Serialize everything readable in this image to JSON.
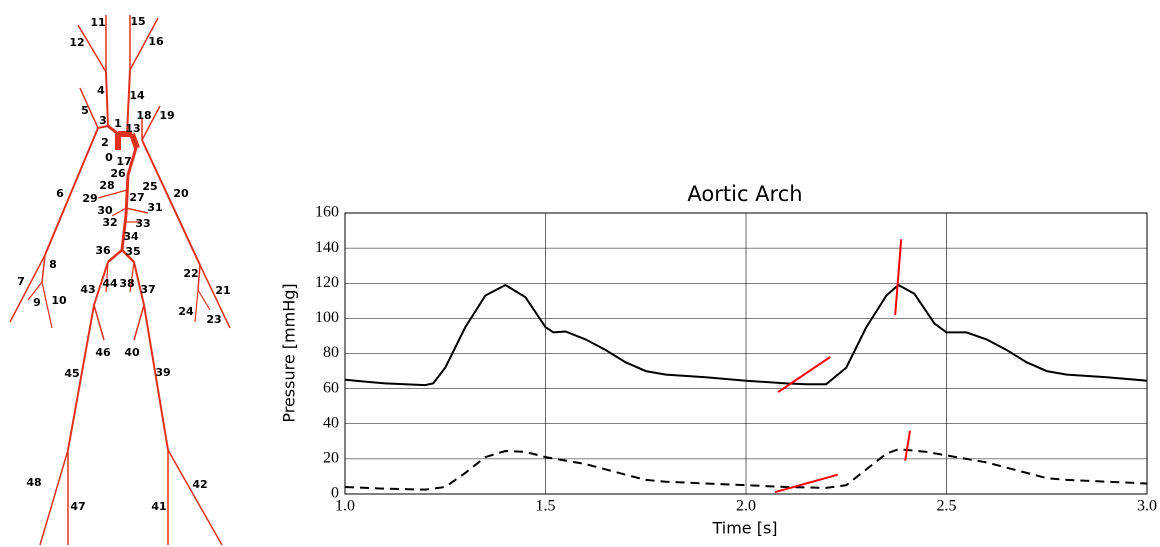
{
  "diagram": {
    "labels": [
      "0",
      "1",
      "2",
      "3",
      "4",
      "5",
      "6",
      "7",
      "8",
      "9",
      "10",
      "11",
      "12",
      "13",
      "14",
      "15",
      "16",
      "17",
      "18",
      "19",
      "20",
      "21",
      "22",
      "23",
      "24",
      "25",
      "26",
      "27",
      "28",
      "29",
      "30",
      "31",
      "32",
      "33",
      "34",
      "35",
      "36",
      "37",
      "38",
      "39",
      "40",
      "41",
      "42",
      "43",
      "44",
      "45",
      "46",
      "47",
      "48"
    ]
  },
  "chart_data": {
    "type": "line",
    "title": "Aortic Arch",
    "x_label": "Time [s]",
    "y_label": "Pressure [mmHg]",
    "xlim": [
      1.0,
      3.0
    ],
    "ylim": [
      0,
      160
    ],
    "xticks": [
      {
        "value": 1.0,
        "label": "1.0"
      },
      {
        "value": 1.5,
        "label": "1.5"
      },
      {
        "value": 2.0,
        "label": "2.0"
      },
      {
        "value": 2.5,
        "label": "2.5"
      },
      {
        "value": 3.0,
        "label": "3.0"
      }
    ],
    "yticks": [
      0,
      20,
      40,
      60,
      80,
      100,
      120,
      140,
      160
    ],
    "grid": true,
    "series": [
      {
        "color": "#000000",
        "dash": "solid",
        "x": [
          1.0,
          1.05,
          1.1,
          1.15,
          1.2,
          1.22,
          1.25,
          1.3,
          1.35,
          1.4,
          1.45,
          1.5,
          1.52,
          1.55,
          1.6,
          1.65,
          1.7,
          1.75,
          1.8,
          1.9,
          2.0,
          2.1,
          2.15,
          2.2,
          2.25,
          2.3,
          2.35,
          2.38,
          2.42,
          2.47,
          2.5,
          2.55,
          2.6,
          2.65,
          2.7,
          2.75,
          2.8,
          2.9,
          3.0
        ],
        "values": [
          65,
          64,
          63,
          62.5,
          62,
          63,
          72,
          95,
          113,
          119,
          112,
          95,
          92,
          92.5,
          88,
          82,
          75,
          70,
          68,
          66.5,
          64.5,
          63,
          62.5,
          62.5,
          72,
          95,
          113,
          119,
          114,
          97,
          92,
          92,
          88,
          82,
          75,
          70,
          68,
          66.5,
          64.5
        ]
      },
      {
        "color": "#000000",
        "dash": "dashed",
        "x": [
          1.0,
          1.1,
          1.2,
          1.25,
          1.3,
          1.35,
          1.4,
          1.45,
          1.5,
          1.6,
          1.7,
          1.75,
          1.8,
          1.9,
          2.0,
          2.1,
          2.2,
          2.25,
          2.3,
          2.35,
          2.38,
          2.45,
          2.5,
          2.6,
          2.7,
          2.75,
          2.8,
          2.9,
          3.0
        ],
        "values": [
          4,
          3,
          2.5,
          4,
          12,
          21,
          24.5,
          24,
          21,
          17,
          11,
          8,
          7,
          6,
          5,
          4,
          3.5,
          5,
          14,
          23,
          25.5,
          24,
          22,
          18,
          12,
          9,
          8,
          7,
          6
        ]
      },
      {
        "color": "#ff0000",
        "dash": "solid",
        "x": [
          2.08,
          2.21
        ],
        "values": [
          58,
          78
        ]
      },
      {
        "color": "#ff0000",
        "dash": "solid",
        "x": [
          2.372,
          2.387
        ],
        "values": [
          102,
          145
        ]
      },
      {
        "color": "#ff0000",
        "dash": "solid",
        "x": [
          2.072,
          2.229
        ],
        "values": [
          1,
          11
        ]
      },
      {
        "color": "#ff0000",
        "dash": "solid",
        "x": [
          2.397,
          2.409
        ],
        "values": [
          19,
          36
        ]
      }
    ]
  }
}
